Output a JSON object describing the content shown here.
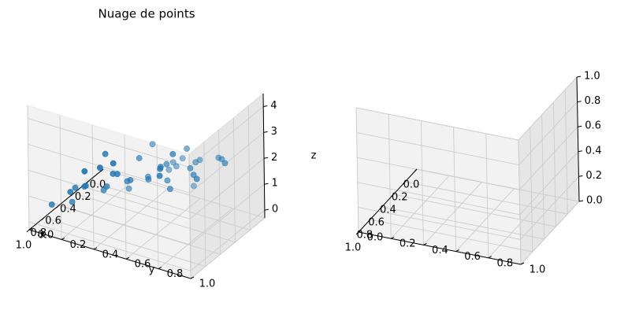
{
  "chart_data": [
    {
      "type": "scatter",
      "title": "Nuage de points",
      "xlabel": "x",
      "ylabel": "y",
      "zlabel": "z",
      "xlim": [
        0,
        1
      ],
      "ylim": [
        0,
        1
      ],
      "zlim": [
        -0.3,
        4.5
      ],
      "xticks": [
        "0.0",
        "0.2",
        "0.4",
        "0.6",
        "0.8",
        "1.0"
      ],
      "yticks": [
        "0.0",
        "0.2",
        "0.4",
        "0.6",
        "0.8",
        "1.0"
      ],
      "zticks": [
        "0",
        "1",
        "2",
        "3",
        "4"
      ],
      "grid": true,
      "color": "#1f77b4",
      "points": [
        [
          0.0,
          0.35,
          0.1
        ],
        [
          0.08,
          0.1,
          0.3
        ],
        [
          0.15,
          0.05,
          0.2
        ],
        [
          0.25,
          0.0,
          0.2
        ],
        [
          0.3,
          0.2,
          0.6
        ],
        [
          0.1,
          0.4,
          0.7
        ],
        [
          0.2,
          0.45,
          1.1
        ],
        [
          0.35,
          0.25,
          0.8
        ],
        [
          0.45,
          0.1,
          0.3
        ],
        [
          0.55,
          0.05,
          0.2
        ],
        [
          0.6,
          0.3,
          1.0
        ],
        [
          0.7,
          0.15,
          0.9
        ],
        [
          0.8,
          0.05,
          0.3
        ],
        [
          0.85,
          0.2,
          0.8
        ],
        [
          0.4,
          0.6,
          1.0
        ],
        [
          0.5,
          0.4,
          1.2
        ],
        [
          0.65,
          0.45,
          1.6
        ],
        [
          0.75,
          0.35,
          1.3
        ],
        [
          0.9,
          0.3,
          1.7
        ],
        [
          0.3,
          0.7,
          1.5
        ],
        [
          0.45,
          0.75,
          2.2
        ],
        [
          0.55,
          0.65,
          2.4
        ],
        [
          0.65,
          0.7,
          2.1
        ],
        [
          0.8,
          0.65,
          2.5
        ],
        [
          0.95,
          0.6,
          2.3
        ],
        [
          0.2,
          0.85,
          2.0
        ],
        [
          0.35,
          0.9,
          2.6
        ],
        [
          0.5,
          0.95,
          3.1
        ],
        [
          0.6,
          0.8,
          3.4
        ],
        [
          0.7,
          0.9,
          3.3
        ],
        [
          0.85,
          0.85,
          3.4
        ],
        [
          0.95,
          0.85,
          3.5
        ],
        [
          0.75,
          0.95,
          3.6
        ],
        [
          0.9,
          0.98,
          3.0
        ],
        [
          0.98,
          0.95,
          4.2
        ],
        [
          1.0,
          0.9,
          4.0
        ],
        [
          0.95,
          0.75,
          4.3
        ],
        [
          0.4,
          0.2,
          1.6
        ],
        [
          0.25,
          0.55,
          1.9
        ],
        [
          0.58,
          0.55,
          1.7
        ],
        [
          0.15,
          0.65,
          0.9
        ],
        [
          0.7,
          0.55,
          2.8
        ]
      ]
    },
    {
      "type": "scatter",
      "title": "",
      "xlim": [
        0,
        1
      ],
      "ylim": [
        0,
        1
      ],
      "zlim": [
        0,
        1
      ],
      "xticks": [
        "0.0",
        "0.2",
        "0.4",
        "0.6",
        "0.8",
        "1.0"
      ],
      "yticks": [
        "0.0",
        "0.2",
        "0.4",
        "0.6",
        "0.8",
        "1.0"
      ],
      "zticks": [
        "0.0",
        "0.2",
        "0.4",
        "0.6",
        "0.8",
        "1.0"
      ],
      "grid": true,
      "points": []
    }
  ]
}
